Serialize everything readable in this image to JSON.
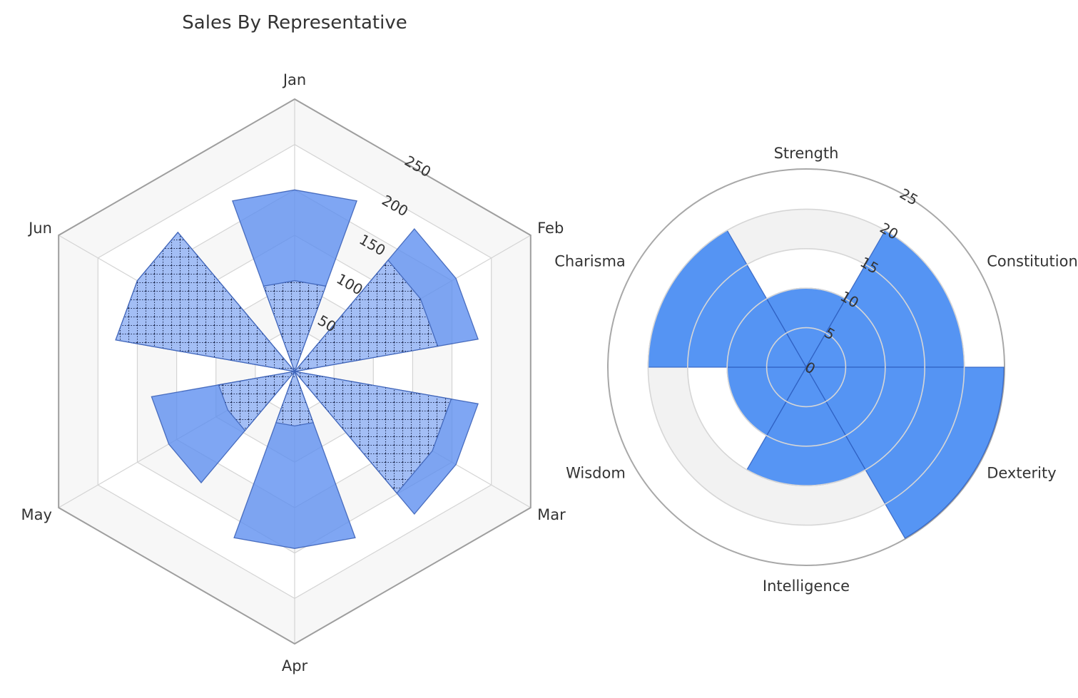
{
  "chart_data": [
    {
      "type": "polar-bar",
      "title": "Sales By Representative",
      "categories": [
        "Jan",
        "Feb",
        "Mar",
        "Apr",
        "May",
        "Jun"
      ],
      "radial_axis": {
        "range": [
          0,
          300
        ],
        "ticks": [
          50,
          100,
          150,
          200,
          250
        ]
      },
      "grid_shape": "hexagon",
      "series": [
        {
          "values": [
            200,
            205,
            205,
            195,
            160,
            200
          ],
          "pattern": "solid",
          "color": "#5b8def"
        },
        {
          "values": [
            100,
            160,
            175,
            60,
            85,
            200
          ],
          "pattern": "dotted-grid",
          "color": "#a8c1f5"
        }
      ]
    },
    {
      "type": "polar-bar",
      "categories": [
        "Strength",
        "Constitution",
        "Dexterity",
        "Intelligence",
        "Wisdom",
        "Charisma"
      ],
      "radial_axis": {
        "range": [
          0,
          25
        ],
        "ticks": [
          0,
          5,
          10,
          15,
          20,
          25
        ]
      },
      "grid_shape": "circle",
      "series": [
        {
          "values": [
            10,
            20,
            25,
            15,
            10,
            20
          ],
          "color": "#3f86f3"
        }
      ]
    }
  ]
}
